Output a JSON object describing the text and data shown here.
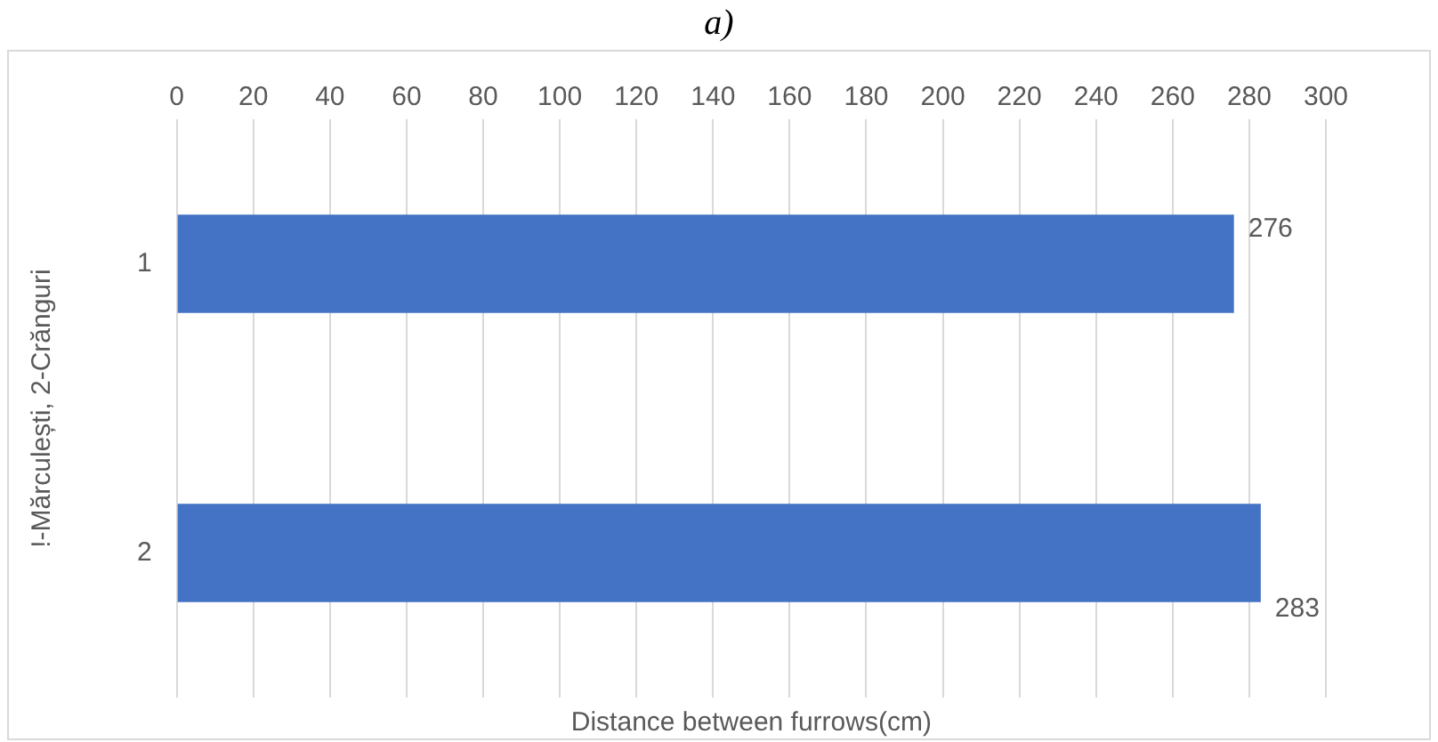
{
  "chart_data": {
    "type": "bar",
    "orientation": "horizontal",
    "title": "a)",
    "xlabel": "Distance between furrows(cm)",
    "ylabel": "!-Mărculești, 2-Crănguri",
    "categories": [
      "1",
      "2"
    ],
    "series": [
      {
        "color": "#4472c4",
        "values": [
          276,
          283
        ]
      }
    ],
    "xlim": [
      0,
      300
    ],
    "xticks": [
      0,
      20,
      40,
      60,
      80,
      100,
      120,
      140,
      160,
      180,
      200,
      220,
      240,
      260,
      280,
      300
    ],
    "grid": "x",
    "legend": false,
    "data_labels": true
  }
}
